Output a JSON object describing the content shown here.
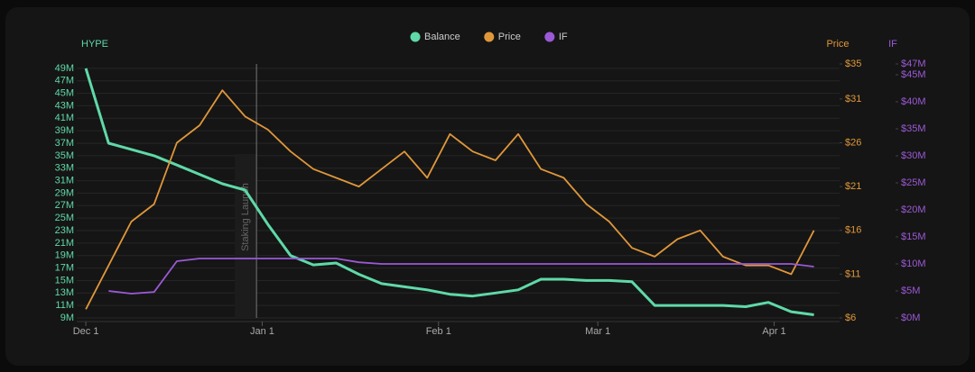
{
  "chart_data": {
    "type": "line",
    "legend": "top-center",
    "grid": true,
    "left_axis_label": "HYPE",
    "right_axis_label": "Price",
    "right2_axis_label": "IF",
    "x": [
      0,
      4,
      8,
      12,
      16,
      20,
      24,
      28,
      32,
      36,
      40,
      44,
      48,
      52,
      56,
      60,
      64,
      68,
      72,
      76,
      80,
      84,
      88,
      92,
      96,
      100,
      104,
      108,
      112,
      116,
      120,
      124,
      128
    ],
    "xlim": [
      -1.6,
      132.5
    ],
    "xticks": [
      {
        "value": 0,
        "label": "Dec 1"
      },
      {
        "value": 31,
        "label": "Jan 1"
      },
      {
        "value": 62,
        "label": "Feb 1"
      },
      {
        "value": 90,
        "label": "Mar 1"
      },
      {
        "value": 121,
        "label": "Apr 1"
      }
    ],
    "ylim": [
      9,
      49.7
    ],
    "yticks": [
      {
        "value": 9,
        "label": "9M"
      },
      {
        "value": 11,
        "label": "11M"
      },
      {
        "value": 13,
        "label": "13M"
      },
      {
        "value": 15,
        "label": "15M"
      },
      {
        "value": 17,
        "label": "17M"
      },
      {
        "value": 19,
        "label": "19M"
      },
      {
        "value": 21,
        "label": "21M"
      },
      {
        "value": 23,
        "label": "23M"
      },
      {
        "value": 25,
        "label": "25M"
      },
      {
        "value": 27,
        "label": "27M"
      },
      {
        "value": 29,
        "label": "29M"
      },
      {
        "value": 31,
        "label": "31M"
      },
      {
        "value": 33,
        "label": "33M"
      },
      {
        "value": 35,
        "label": "35M"
      },
      {
        "value": 37,
        "label": "37M"
      },
      {
        "value": 39,
        "label": "39M"
      },
      {
        "value": 41,
        "label": "41M"
      },
      {
        "value": 43,
        "label": "43M"
      },
      {
        "value": 45,
        "label": "45M"
      },
      {
        "value": 47,
        "label": "47M"
      },
      {
        "value": 49,
        "label": "49M"
      }
    ],
    "y2lim": [
      6,
      35
    ],
    "y2ticks": [
      {
        "value": 6,
        "label": "$6"
      },
      {
        "value": 11,
        "label": "$11"
      },
      {
        "value": 16,
        "label": "$16"
      },
      {
        "value": 21,
        "label": "$21"
      },
      {
        "value": 26,
        "label": "$26"
      },
      {
        "value": 31,
        "label": "$31"
      },
      {
        "value": 35,
        "label": "$35"
      }
    ],
    "y3lim": [
      0,
      47
    ],
    "y3ticks": [
      {
        "value": 0,
        "label": "$0M"
      },
      {
        "value": 5,
        "label": "$5M"
      },
      {
        "value": 10,
        "label": "$10M"
      },
      {
        "value": 15,
        "label": "$15M"
      },
      {
        "value": 20,
        "label": "$20M"
      },
      {
        "value": 25,
        "label": "$25M"
      },
      {
        "value": 30,
        "label": "$30M"
      },
      {
        "value": 35,
        "label": "$35M"
      },
      {
        "value": 40,
        "label": "$40M"
      },
      {
        "value": 45,
        "label": "$45M"
      },
      {
        "value": 47,
        "label": "$47M"
      }
    ],
    "annotation": {
      "label": "Staking Launch",
      "x": 30
    },
    "series": [
      {
        "name": "Balance",
        "color": "#5fd9a8",
        "axis": "y",
        "values": [
          49,
          37,
          36,
          35,
          33.5,
          32,
          30.5,
          29.5,
          24,
          19,
          17.5,
          17.8,
          16,
          14.5,
          14,
          13.5,
          12.8,
          12.5,
          13,
          13.5,
          15.2,
          15.2,
          15,
          15,
          14.8,
          11,
          11,
          11,
          11,
          10.8,
          11.5,
          10,
          9.5
        ]
      },
      {
        "name": "Price",
        "color": "#e0973a",
        "axis": "y2",
        "values": [
          7,
          12,
          17,
          19,
          26,
          28,
          32,
          29,
          27.5,
          25,
          23,
          22,
          21,
          23,
          25,
          22,
          27,
          25,
          24,
          27,
          23,
          22,
          19,
          17,
          14,
          13,
          15,
          16,
          13,
          12,
          12,
          11,
          16
        ]
      },
      {
        "name": "IF",
        "color": "#9b59d6",
        "axis": "y3",
        "values": [
          null,
          5,
          4.5,
          4.8,
          10.5,
          11,
          11,
          11,
          11,
          11,
          11,
          11,
          10.3,
          10,
          10,
          10,
          10,
          10,
          10,
          10,
          10,
          10,
          10,
          10,
          10,
          10,
          10,
          10,
          10,
          10,
          10,
          10,
          9.5
        ]
      }
    ]
  }
}
